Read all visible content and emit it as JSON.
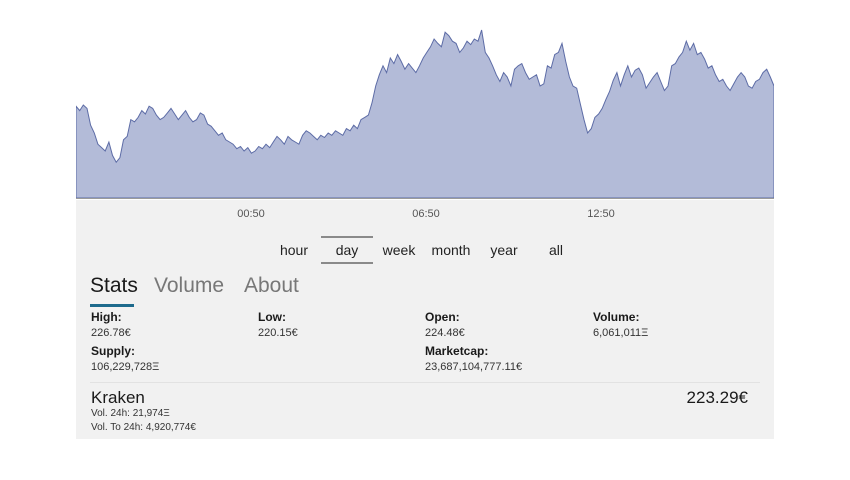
{
  "chart": {
    "x_ticks": [
      "00:50",
      "06:50",
      "12:50"
    ],
    "fill_color": "#b3bbd8",
    "line_color": "#5d6ca6",
    "series": [
      82,
      78,
      83,
      80,
      65,
      58,
      48,
      45,
      42,
      50,
      38,
      32,
      36,
      52,
      55,
      70,
      68,
      72,
      78,
      75,
      82,
      80,
      74,
      70,
      72,
      76,
      80,
      75,
      70,
      74,
      78,
      72,
      68,
      70,
      76,
      74,
      66,
      64,
      60,
      56,
      58,
      52,
      50,
      48,
      44,
      46,
      42,
      45,
      40,
      42,
      46,
      44,
      48,
      45,
      50,
      55,
      52,
      48,
      55,
      52,
      50,
      48,
      56,
      60,
      58,
      55,
      52,
      56,
      54,
      58,
      56,
      60,
      58,
      56,
      62,
      60,
      65,
      62,
      70,
      72,
      74,
      85,
      100,
      110,
      118,
      112,
      125,
      120,
      128,
      122,
      115,
      120,
      116,
      112,
      118,
      125,
      130,
      135,
      142,
      138,
      135,
      148,
      145,
      140,
      138,
      130,
      134,
      140,
      137,
      142,
      140,
      150,
      130,
      125,
      118,
      110,
      104,
      112,
      108,
      100,
      115,
      118,
      120,
      112,
      106,
      108,
      110,
      100,
      102,
      118,
      116,
      128,
      130,
      138,
      122,
      108,
      100,
      98,
      84,
      70,
      58,
      62,
      72,
      75,
      80,
      88,
      95,
      105,
      112,
      100,
      110,
      118,
      108,
      114,
      116,
      110,
      98,
      103,
      108,
      112,
      104,
      96,
      100,
      118,
      120,
      126,
      130,
      140,
      132,
      138,
      128,
      130,
      124,
      116,
      118,
      110,
      104,
      106,
      100,
      96,
      102,
      108,
      112,
      108,
      100,
      98,
      104,
      106,
      112,
      115,
      108,
      100
    ]
  },
  "ranges": [
    {
      "label": "hour",
      "active": false
    },
    {
      "label": "day",
      "active": true
    },
    {
      "label": "week",
      "active": false
    },
    {
      "label": "month",
      "active": false
    },
    {
      "label": "year",
      "active": false
    },
    {
      "label": "all",
      "active": false
    }
  ],
  "tabs": [
    {
      "label": "Stats",
      "active": true
    },
    {
      "label": "Volume",
      "active": false
    },
    {
      "label": "About",
      "active": false
    }
  ],
  "stats": {
    "high_label": "High:",
    "high_value": "226.78€",
    "low_label": "Low:",
    "low_value": "220.15€",
    "open_label": "Open:",
    "open_value": "224.48€",
    "volume_label": "Volume:",
    "volume_value": "6,061,011Ξ",
    "supply_label": "Supply:",
    "supply_value": "106,229,728Ξ",
    "marketcap_label": "Marketcap:",
    "marketcap_value": "23,687,104,777.11€"
  },
  "exchange": {
    "name": "Kraken",
    "vol24": "Vol. 24h: 21,974Ξ",
    "volto24": "Vol. To 24h: 4,920,774€",
    "price": "223.29€"
  }
}
